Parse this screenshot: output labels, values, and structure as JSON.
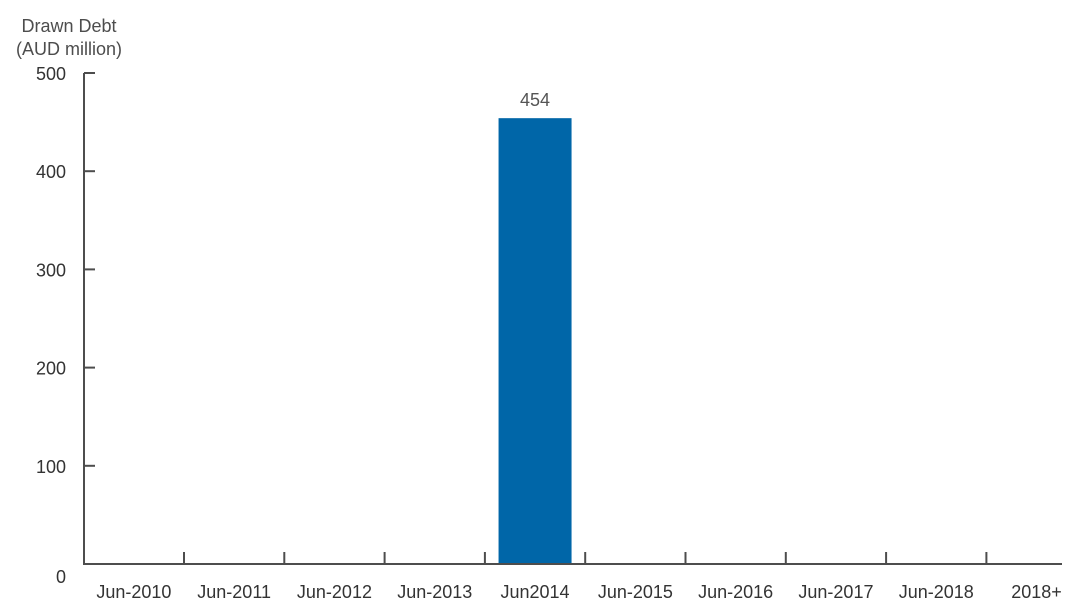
{
  "chart_data": {
    "type": "bar",
    "ylabel_lines": [
      "Drawn Debt",
      "(AUD million)"
    ],
    "categories": [
      "Jun-2010",
      "Jun-2011",
      "Jun-2012",
      "Jun-2013",
      "Jun2014",
      "Jun-2015",
      "Jun-2016",
      "Jun-2017",
      "Jun-2018",
      "2018+"
    ],
    "values": [
      0,
      0,
      0,
      0,
      454,
      0,
      0,
      0,
      0,
      0
    ],
    "data_labels": [
      "",
      "",
      "",
      "",
      "454",
      "",
      "",
      "",
      "",
      ""
    ],
    "ylim": [
      0,
      500
    ],
    "yticks": [
      0,
      100,
      200,
      300,
      400,
      500
    ],
    "bar_color": "#0066a8",
    "axis_color": "#4d4d4d",
    "grid": false
  }
}
